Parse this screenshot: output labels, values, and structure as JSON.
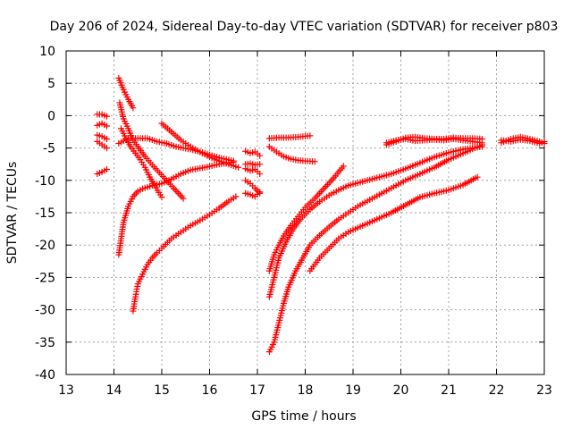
{
  "chart_data": {
    "type": "scatter",
    "title": "Day 206 of 2024, Sidereal Day-to-day VTEC variation (SDTVAR) for receiver p803",
    "xlabel": "GPS time / hours",
    "ylabel": "SDTVAR / TECUs",
    "xlim": [
      13,
      23
    ],
    "ylim": [
      -40,
      10
    ],
    "xticks": [
      13,
      14,
      15,
      16,
      17,
      18,
      19,
      20,
      21,
      22,
      23
    ],
    "yticks": [
      -40,
      -35,
      -30,
      -25,
      -20,
      -15,
      -10,
      -5,
      0,
      5,
      10
    ],
    "grid": true,
    "marker": "plus",
    "color": "#ff0000",
    "series": [
      {
        "x": [
          13.65,
          13.75,
          13.85
        ],
        "y": [
          0.2,
          0.2,
          -0.1
        ]
      },
      {
        "x": [
          13.65,
          13.75,
          13.85
        ],
        "y": [
          -1.5,
          -1.2,
          -1.6
        ]
      },
      {
        "x": [
          13.65,
          13.75,
          13.85
        ],
        "y": [
          -3.0,
          -3.2,
          -3.6
        ]
      },
      {
        "x": [
          13.65,
          13.75,
          13.85
        ],
        "y": [
          -4.0,
          -4.5,
          -5.0
        ]
      },
      {
        "x": [
          13.65,
          13.75,
          13.85
        ],
        "y": [
          -9.0,
          -8.7,
          -8.3
        ]
      },
      {
        "x": [
          14.1,
          14.2,
          14.3,
          14.4
        ],
        "y": [
          5.8,
          4.0,
          2.5,
          1.2
        ]
      },
      {
        "x": [
          14.12,
          14.2,
          14.3,
          14.4,
          14.5,
          14.65,
          14.8,
          14.95,
          15.1,
          15.25,
          15.45
        ],
        "y": [
          2.0,
          -0.5,
          -2.0,
          -3.8,
          -4.8,
          -6.3,
          -7.6,
          -8.8,
          -10.0,
          -11.2,
          -12.8
        ]
      },
      {
        "x": [
          14.15,
          14.25,
          14.35,
          14.45,
          14.55,
          14.65,
          14.75,
          14.85,
          15.0
        ],
        "y": [
          -2.0,
          -3.5,
          -4.8,
          -5.8,
          -6.8,
          -8.0,
          -9.5,
          -10.8,
          -12.6
        ]
      },
      {
        "x": [
          14.1,
          14.3,
          14.5,
          14.7,
          14.9,
          15.1,
          15.3,
          15.6,
          15.9,
          16.2,
          16.5
        ],
        "y": [
          -4.3,
          -3.5,
          -3.5,
          -3.5,
          -4.0,
          -4.3,
          -4.8,
          -5.2,
          -5.8,
          -6.5,
          -7.0
        ]
      },
      {
        "x": [
          14.1,
          14.15,
          14.2,
          14.3,
          14.4,
          14.5,
          14.6,
          14.8,
          15.0,
          15.2,
          15.4,
          15.6,
          15.9,
          16.2,
          16.5
        ],
        "y": [
          -21.5,
          -19.0,
          -16.5,
          -14.0,
          -12.5,
          -11.7,
          -11.3,
          -10.8,
          -10.5,
          -9.8,
          -9.0,
          -8.4,
          -8.0,
          -7.5,
          -7.2
        ]
      },
      {
        "x": [
          15.0,
          15.2,
          15.4,
          15.6,
          15.8,
          16.0,
          16.2,
          16.4,
          16.6
        ],
        "y": [
          -1.2,
          -2.5,
          -3.8,
          -4.8,
          -5.6,
          -6.4,
          -7.0,
          -7.5,
          -8.0
        ]
      },
      {
        "x": [
          14.4,
          14.45,
          14.5,
          14.6,
          14.7,
          14.8,
          14.9,
          15.0,
          15.2,
          15.4,
          15.6,
          15.8,
          16.0,
          16.2,
          16.4,
          16.55
        ],
        "y": [
          -30.2,
          -28.0,
          -26.0,
          -24.5,
          -23.0,
          -22.0,
          -21.2,
          -20.5,
          -19.0,
          -18.0,
          -17.0,
          -16.2,
          -15.3,
          -14.3,
          -13.2,
          -12.5
        ]
      },
      {
        "x": [
          16.75,
          16.85,
          16.95,
          17.05
        ],
        "y": [
          -10.0,
          -10.5,
          -11.2,
          -12.0
        ]
      },
      {
        "x": [
          16.75,
          16.85,
          16.95,
          17.05
        ],
        "y": [
          -12.0,
          -12.2,
          -12.5,
          -11.8
        ]
      },
      {
        "x": [
          16.75,
          16.85,
          16.95,
          17.05
        ],
        "y": [
          -5.5,
          -5.8,
          -5.6,
          -6.2
        ]
      },
      {
        "x": [
          16.75,
          16.85,
          16.95,
          17.05
        ],
        "y": [
          -7.5,
          -7.4,
          -7.6,
          -7.5
        ]
      },
      {
        "x": [
          16.75,
          16.85,
          16.95,
          17.05
        ],
        "y": [
          -8.2,
          -8.5,
          -8.3,
          -9.0
        ]
      },
      {
        "x": [
          17.25,
          17.45,
          17.65,
          17.85,
          18.1
        ],
        "y": [
          -3.5,
          -3.4,
          -3.4,
          -3.3,
          -3.1
        ]
      },
      {
        "x": [
          17.25,
          17.4,
          17.55,
          17.7,
          17.85,
          18.0,
          18.2
        ],
        "y": [
          -4.8,
          -5.6,
          -6.3,
          -6.7,
          -6.9,
          -7.0,
          -7.1
        ]
      },
      {
        "x": [
          17.25,
          17.35,
          17.45,
          17.55,
          17.7,
          17.85,
          18.0,
          18.2,
          18.4,
          18.6,
          18.8
        ],
        "y": [
          -24.0,
          -21.5,
          -20.0,
          -18.6,
          -17.0,
          -15.6,
          -14.2,
          -12.8,
          -11.2,
          -9.6,
          -7.8
        ]
      },
      {
        "x": [
          17.25,
          17.35,
          17.45,
          17.6,
          17.75,
          17.9,
          18.1,
          18.3,
          18.5,
          18.7,
          18.9,
          19.2,
          19.5,
          19.8,
          20.1,
          20.4,
          20.7,
          21.0,
          21.3,
          21.7
        ],
        "y": [
          -28.0,
          -25.0,
          -22.0,
          -19.5,
          -17.5,
          -16.0,
          -14.5,
          -13.3,
          -12.3,
          -11.5,
          -10.8,
          -10.2,
          -9.6,
          -9.0,
          -8.2,
          -7.3,
          -6.4,
          -5.7,
          -5.2,
          -4.8
        ]
      },
      {
        "x": [
          17.25,
          17.35,
          17.45,
          17.55,
          17.65,
          17.8,
          17.95,
          18.1,
          18.3,
          18.5,
          18.7,
          18.9,
          19.1,
          19.35,
          19.6,
          19.85,
          20.1,
          20.4,
          20.7,
          21.0,
          21.4,
          21.7
        ],
        "y": [
          -36.5,
          -35.0,
          -32.0,
          -29.0,
          -26.5,
          -24.0,
          -22.0,
          -20.0,
          -18.5,
          -17.2,
          -16.0,
          -15.0,
          -14.0,
          -13.0,
          -12.0,
          -11.0,
          -10.0,
          -9.0,
          -8.0,
          -6.8,
          -5.5,
          -4.5
        ]
      },
      {
        "x": [
          18.1,
          18.3,
          18.5,
          18.7,
          18.9,
          19.2,
          19.5,
          19.8,
          20.1,
          20.4,
          20.7,
          21.0,
          21.3,
          21.6
        ],
        "y": [
          -24.0,
          -22.0,
          -20.5,
          -19.0,
          -18.0,
          -17.0,
          -16.0,
          -15.0,
          -13.8,
          -12.6,
          -12.0,
          -11.5,
          -10.7,
          -9.5
        ]
      },
      {
        "x": [
          19.7,
          19.9,
          20.1,
          20.3,
          20.5,
          20.7,
          20.9,
          21.1,
          21.3,
          21.5,
          21.7
        ],
        "y": [
          -4.5,
          -4.0,
          -3.4,
          -3.3,
          -3.5,
          -3.6,
          -3.6,
          -3.4,
          -3.5,
          -3.5,
          -3.6
        ]
      },
      {
        "x": [
          19.7,
          19.9,
          20.1,
          20.3,
          20.5,
          20.7,
          20.9,
          21.1,
          21.3,
          21.5,
          21.7
        ],
        "y": [
          -4.2,
          -3.8,
          -3.6,
          -3.9,
          -3.8,
          -3.7,
          -3.8,
          -3.6,
          -3.8,
          -4.0,
          -4.2
        ]
      },
      {
        "x": [
          22.1,
          22.3,
          22.5,
          22.7,
          22.9,
          23.0
        ],
        "y": [
          -4.2,
          -3.6,
          -3.3,
          -3.6,
          -4.0,
          -4.3
        ]
      },
      {
        "x": [
          22.1,
          22.3,
          22.5,
          22.7,
          22.9,
          23.0
        ],
        "y": [
          -3.8,
          -4.0,
          -3.7,
          -3.9,
          -4.3,
          -4.0
        ]
      }
    ]
  }
}
